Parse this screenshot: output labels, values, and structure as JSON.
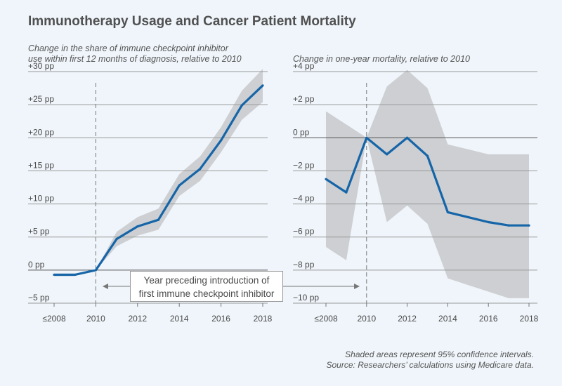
{
  "title": "Immunotherapy Usage and Cancer Patient Mortality",
  "footnote1": "Shaded areas represent 95% confidence intervals.",
  "footnote2": "Source: Researchers’ calculations using Medicare data.",
  "annotation": {
    "line1": "Year preceding introduction of",
    "line2": "first immune checkpoint inhibitor"
  },
  "colors": {
    "line": "#1565a8",
    "band": "#cdcfd2",
    "grid": "#9a9a9a",
    "background": "#eff5fa"
  },
  "chart_data": [
    {
      "type": "line",
      "title": "Change in the share of immune checkpoint inhibitor use within first 12 months of diagnosis, relative to 2010",
      "subtitle_line1": "Change in the share of immune checkpoint inhibitor",
      "subtitle_line2": "use within first 12 months of diagnosis, relative to 2010",
      "x": [
        2008,
        2009,
        2010,
        2011,
        2012,
        2013,
        2014,
        2015,
        2016,
        2017,
        2018
      ],
      "x_tick_values": [
        2008,
        2010,
        2012,
        2014,
        2016,
        2018
      ],
      "x_tick_labels": [
        "≤2008",
        "2010",
        "2012",
        "2014",
        "2016",
        "2018"
      ],
      "ylim": [
        -5,
        30
      ],
      "y_ticks": [
        -5,
        0,
        5,
        10,
        15,
        20,
        25,
        30
      ],
      "y_tick_labels": [
        "−5 pp",
        "0 pp",
        "+5 pp",
        "+10 pp",
        "+15 pp",
        "+20 pp",
        "+25 pp",
        "+30 pp"
      ],
      "vline_x": 2010,
      "series": [
        {
          "name": "Estimate",
          "values": [
            -0.7,
            -0.7,
            0,
            4.7,
            6.6,
            7.6,
            12.8,
            15.3,
            19.6,
            24.9,
            27.9
          ]
        }
      ],
      "ci_lower": [
        -0.9,
        -0.9,
        0,
        3.6,
        5.2,
        6.1,
        11.2,
        13.5,
        17.8,
        22.7,
        25.4
      ],
      "ci_upper": [
        -0.5,
        -0.5,
        0,
        5.8,
        8.0,
        9.3,
        14.5,
        17.2,
        21.6,
        27.1,
        30.4
      ]
    },
    {
      "type": "line",
      "title": "Change in one-year mortality, relative to 2010",
      "subtitle_line1": "Change in one-year mortality, relative to 2010",
      "x": [
        2008,
        2009,
        2010,
        2011,
        2012,
        2013,
        2014,
        2015,
        2016,
        2017,
        2018
      ],
      "x_tick_values": [
        2008,
        2010,
        2012,
        2014,
        2016,
        2018
      ],
      "x_tick_labels": [
        "≤2008",
        "2010",
        "2012",
        "2014",
        "2016",
        "2018"
      ],
      "ylim": [
        -10,
        4
      ],
      "y_ticks": [
        -10,
        -8,
        -6,
        -4,
        -2,
        0,
        2,
        4
      ],
      "y_tick_labels": [
        "−10 pp",
        "−8 pp",
        "−6 pp",
        "−4 pp",
        "−2 pp",
        "0 pp",
        "+2 pp",
        "+4 pp"
      ],
      "vline_x": 2010,
      "series": [
        {
          "name": "Estimate",
          "values": [
            -2.5,
            -3.3,
            0,
            -1.0,
            0,
            -1.1,
            -4.5,
            -4.8,
            -5.1,
            -5.3,
            -5.3
          ]
        }
      ],
      "ci_lower": [
        -6.6,
        -7.4,
        0,
        -5.1,
        -4.1,
        -5.2,
        -8.5,
        -8.9,
        -9.3,
        -9.7,
        -9.7
      ],
      "ci_upper": [
        1.6,
        0.8,
        0,
        3.1,
        4.1,
        3.0,
        -0.4,
        -0.7,
        -1.0,
        -1.0,
        -1.0
      ]
    }
  ]
}
